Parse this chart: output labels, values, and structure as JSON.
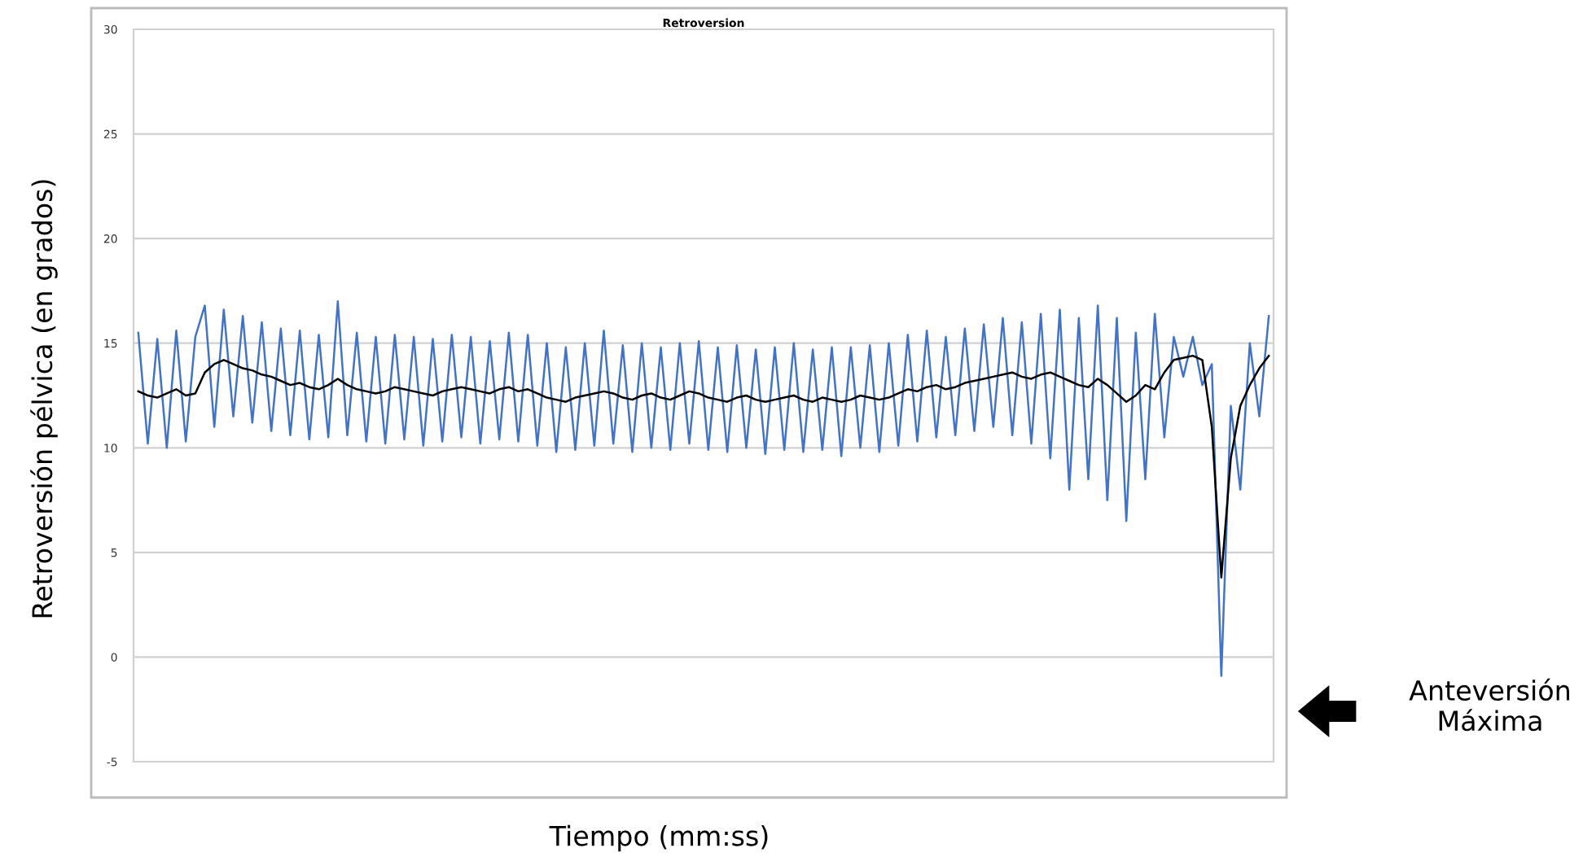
{
  "chart_data": {
    "type": "line",
    "title": "Retroversion",
    "xlabel": "Tiempo (mm:ss)",
    "ylabel": "Retroversión pélvica (en grados)",
    "annotations": [
      "Anteversión\nMáxima"
    ],
    "categories": [
      null,
      null,
      null,
      null,
      null,
      null,
      null,
      null,
      null,
      null,
      null,
      null,
      null,
      null,
      null,
      null,
      null,
      null,
      null,
      null,
      null,
      null,
      null,
      null,
      null,
      null,
      null,
      null,
      null,
      null,
      null,
      null,
      null,
      null,
      null,
      null,
      null,
      null,
      null,
      null,
      null,
      null,
      null,
      null,
      null,
      null,
      null,
      null,
      null,
      null,
      null,
      null,
      null,
      null,
      null,
      null,
      null,
      null,
      null,
      null,
      null,
      null,
      null,
      null,
      null,
      null,
      null,
      null,
      null,
      null,
      null,
      null,
      null,
      null,
      null,
      null,
      null,
      null,
      null,
      null,
      null,
      null,
      null,
      null,
      null,
      null,
      null,
      null,
      null,
      null,
      null,
      null,
      null,
      null,
      null,
      null,
      null,
      null,
      null,
      null,
      null,
      null,
      null,
      null,
      null,
      null,
      null,
      null,
      null,
      null,
      null,
      null,
      null,
      null,
      null,
      null,
      null,
      null,
      null,
      null
    ],
    "series": [
      {
        "color": "#4472c4",
        "values": [
          15.5,
          10.2,
          15.2,
          10.0,
          15.6,
          10.3,
          15.3,
          16.8,
          11.0,
          16.6,
          11.5,
          16.3,
          11.2,
          16.0,
          10.8,
          15.7,
          10.6,
          15.6,
          10.4,
          15.4,
          10.5,
          17.0,
          10.6,
          15.5,
          10.3,
          15.3,
          10.2,
          15.4,
          10.4,
          15.3,
          10.1,
          15.2,
          10.3,
          15.4,
          10.5,
          15.3,
          10.2,
          15.1,
          10.4,
          15.5,
          10.3,
          15.4,
          10.1,
          15.0,
          9.8,
          14.8,
          9.9,
          15.0,
          10.1,
          15.6,
          10.2,
          14.9,
          9.8,
          15.0,
          10.0,
          14.8,
          9.9,
          15.0,
          10.2,
          15.1,
          9.9,
          14.8,
          9.8,
          14.9,
          10.0,
          14.7,
          9.7,
          14.8,
          9.9,
          15.0,
          9.8,
          14.7,
          9.9,
          14.8,
          9.6,
          14.8,
          10.0,
          14.9,
          9.8,
          15.0,
          10.1,
          15.4,
          10.3,
          15.6,
          10.5,
          15.3,
          10.6,
          15.7,
          10.8,
          15.9,
          11.0,
          16.2,
          10.6,
          16.0,
          10.2,
          16.4,
          9.5,
          16.6,
          8.0,
          16.2,
          8.5,
          16.8,
          7.5,
          16.2,
          6.5,
          15.5,
          8.5,
          16.4,
          10.5,
          15.3,
          13.4,
          15.3,
          13.0,
          14.0,
          -0.9,
          12.0,
          8.0,
          15.0,
          11.5,
          16.3
        ]
      },
      {
        "color": "#000000",
        "values": [
          12.7,
          12.5,
          12.4,
          12.6,
          12.8,
          12.5,
          12.6,
          13.6,
          14.0,
          14.2,
          14.0,
          13.8,
          13.7,
          13.5,
          13.4,
          13.2,
          13.0,
          13.1,
          12.9,
          12.8,
          13.0,
          13.3,
          13.0,
          12.8,
          12.7,
          12.6,
          12.7,
          12.9,
          12.8,
          12.7,
          12.6,
          12.5,
          12.7,
          12.8,
          12.9,
          12.8,
          12.7,
          12.6,
          12.8,
          12.9,
          12.7,
          12.8,
          12.6,
          12.4,
          12.3,
          12.2,
          12.4,
          12.5,
          12.6,
          12.7,
          12.6,
          12.4,
          12.3,
          12.5,
          12.6,
          12.4,
          12.3,
          12.5,
          12.7,
          12.6,
          12.4,
          12.3,
          12.2,
          12.4,
          12.5,
          12.3,
          12.2,
          12.3,
          12.4,
          12.5,
          12.3,
          12.2,
          12.4,
          12.3,
          12.2,
          12.3,
          12.5,
          12.4,
          12.3,
          12.4,
          12.6,
          12.8,
          12.7,
          12.9,
          13.0,
          12.8,
          12.9,
          13.1,
          13.2,
          13.3,
          13.4,
          13.5,
          13.6,
          13.4,
          13.3,
          13.5,
          13.6,
          13.4,
          13.2,
          13.0,
          12.9,
          13.3,
          13.0,
          12.6,
          12.2,
          12.5,
          13.0,
          12.8,
          13.6,
          14.2,
          14.3,
          14.4,
          14.2,
          11.0,
          3.8,
          9.5,
          12.0,
          13.0,
          13.8,
          14.4
        ]
      }
    ],
    "ylim": [
      -5,
      30
    ],
    "yticks": [
      -5,
      0,
      5,
      10,
      15,
      20,
      25,
      30
    ],
    "grid": "y",
    "tick_labels": "y",
    "marker": "none",
    "line_style": "solid"
  }
}
